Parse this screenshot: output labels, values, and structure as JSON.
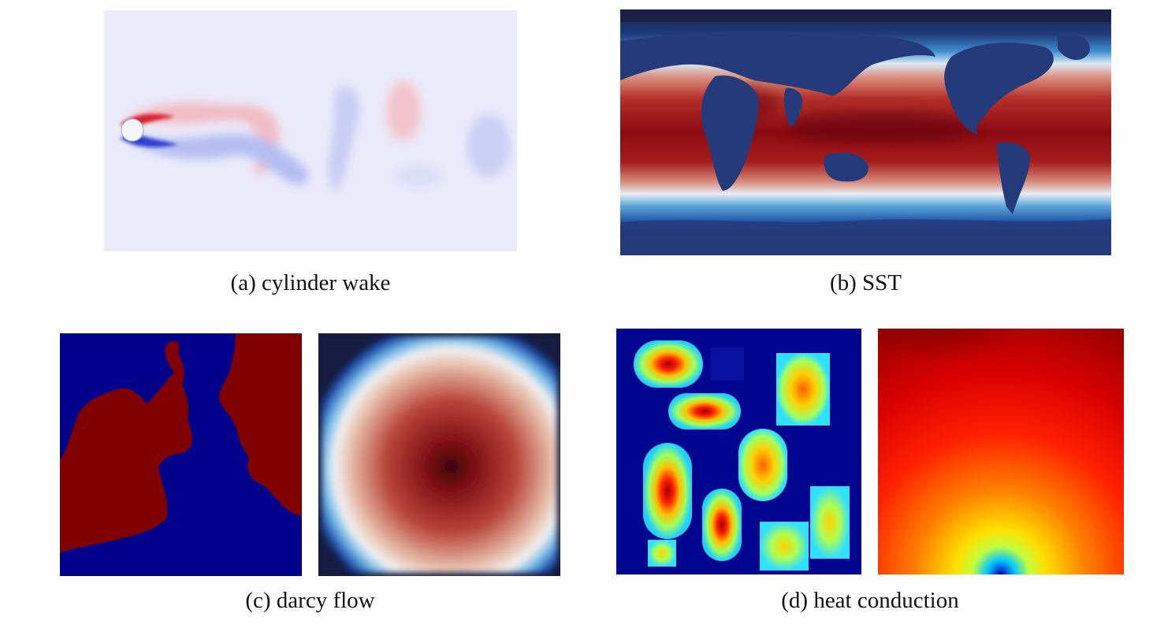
{
  "panels": [
    {
      "id": "a",
      "caption": "(a) cylinder wake"
    },
    {
      "id": "b",
      "caption": "(b) SST"
    },
    {
      "id": "c",
      "caption": "(c) darcy flow"
    },
    {
      "id": "d",
      "caption": "(d) heat conduction"
    }
  ],
  "colors": {
    "wake_background": "#ebebfb",
    "wake_positive": "#e04040",
    "wake_negative": "#3a4fd8",
    "ocean_warm": "#8b0a12",
    "ocean_cool": "#1c2f7a",
    "land": "#233a7a",
    "darcy_high": "#800000",
    "darcy_low": "#00008a",
    "heat_bg": "#00058f",
    "heat_hot": "#a50000"
  }
}
